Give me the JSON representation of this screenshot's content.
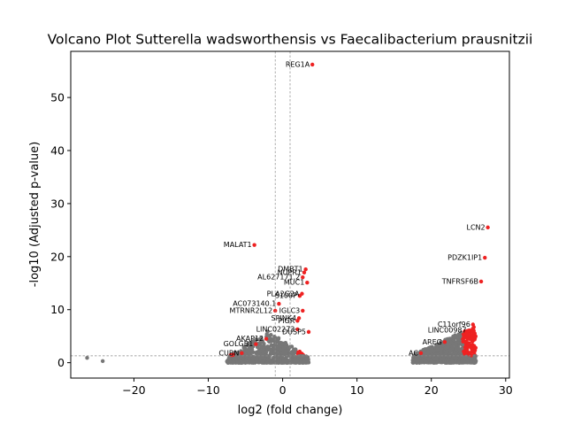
{
  "chart_data": {
    "type": "scatter",
    "title": "Volcano Plot Sutterella wadsworthensis vs Faecalibacterium prausnitzii",
    "xlabel": "log2 (fold change)",
    "ylabel": "-log10 (Adjusted p-value)",
    "xlim": [
      -28.5,
      30.5
    ],
    "ylim": [
      -2.9,
      58.7
    ],
    "xticks": [
      -20,
      -10,
      0,
      10,
      20,
      30
    ],
    "yticks": [
      0,
      10,
      20,
      30,
      40,
      50
    ],
    "grid": false,
    "legend": "none",
    "colors": {
      "significant": "#ee2222",
      "not_significant": "#777777",
      "threshold_line": "#888888"
    },
    "thresholds": {
      "log2fc": [
        -1,
        1
      ],
      "neg_log10_padj": 1.3
    },
    "labeled_points": [
      {
        "gene": "REG1A",
        "x": 4.0,
        "y": 56.2
      },
      {
        "gene": "LCN2",
        "x": 27.6,
        "y": 25.5
      },
      {
        "gene": "MALAT1",
        "x": -3.8,
        "y": 22.2
      },
      {
        "gene": "PDZK1IP1",
        "x": 27.2,
        "y": 19.8
      },
      {
        "gene": "DMBT1",
        "x": 3.1,
        "y": 17.6
      },
      {
        "gene": "NUPR1",
        "x": 2.9,
        "y": 17.0
      },
      {
        "gene": "AL627171.2",
        "x": 2.7,
        "y": 16.1
      },
      {
        "gene": "MUC1",
        "x": 3.3,
        "y": 15.1
      },
      {
        "gene": "TNFRSF6B",
        "x": 26.7,
        "y": 15.3
      },
      {
        "gene": "PLA2G2A",
        "x": 2.6,
        "y": 13.0
      },
      {
        "gene": "S100P",
        "x": 2.3,
        "y": 12.6
      },
      {
        "gene": "AC073140.1",
        "x": -0.5,
        "y": 11.1
      },
      {
        "gene": "MTRNR2L12",
        "x": -1.0,
        "y": 9.8
      },
      {
        "gene": "IGLC3",
        "x": 2.7,
        "y": 9.8
      },
      {
        "gene": "SPINK4",
        "x": 2.2,
        "y": 8.4
      },
      {
        "gene": "PIGR",
        "x": 2.0,
        "y": 7.9
      },
      {
        "gene": "C11orf96",
        "x": 25.6,
        "y": 7.2
      },
      {
        "gene": "LINC02273",
        "x": 2.0,
        "y": 6.3
      },
      {
        "gene": "DUSP5",
        "x": 3.5,
        "y": 5.8
      },
      {
        "gene": "LINC00987",
        "x": 25.1,
        "y": 6.1
      },
      {
        "gene": "AKAP12",
        "x": -2.2,
        "y": 4.5
      },
      {
        "gene": "AREG",
        "x": 21.8,
        "y": 3.9
      },
      {
        "gene": "GOLGB1",
        "x": -3.6,
        "y": 3.5
      },
      {
        "gene": "CUBN",
        "x": -5.5,
        "y": 1.8
      },
      {
        "gene": "AC",
        "x": 18.6,
        "y": 1.8
      }
    ],
    "outlier_points": [
      {
        "x": -26.3,
        "y": 0.9
      },
      {
        "x": -24.2,
        "y": 0.3
      }
    ],
    "clusters": [
      {
        "name": "",
        "x_range": [
          -7.5,
          3.5
        ],
        "y_range": [
          0,
          6
        ],
        "count": 700
      },
      {
        "name": "",
        "x_range": [
          17.5,
          26.0
        ],
        "y_range": [
          0,
          7
        ],
        "count": 800
      }
    ]
  }
}
